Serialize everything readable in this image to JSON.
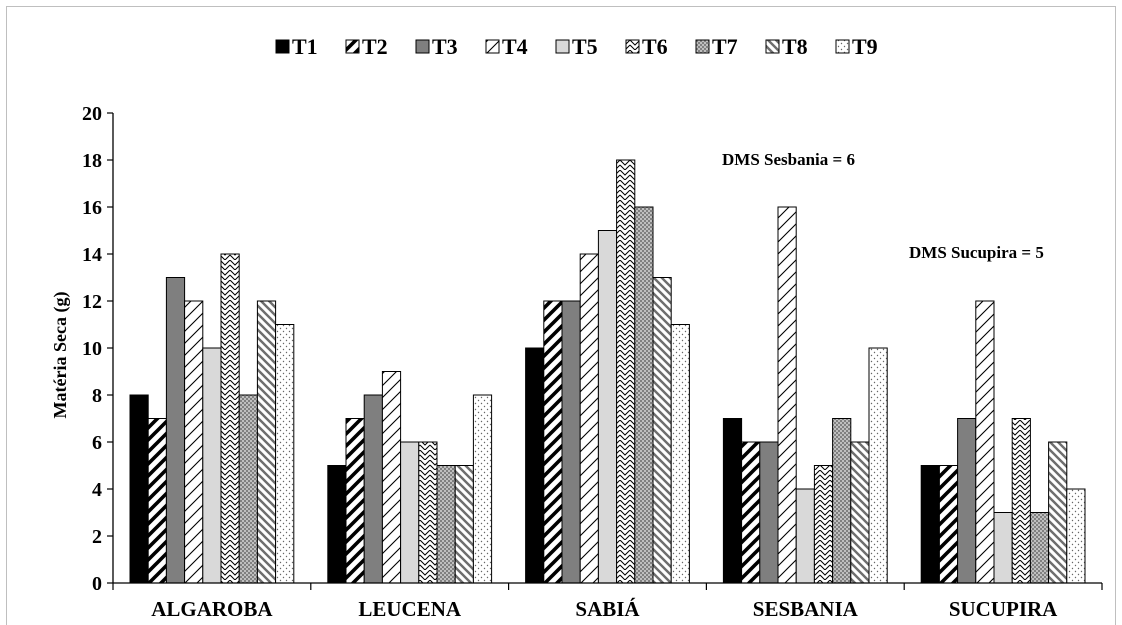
{
  "chart_data": {
    "type": "bar",
    "categories": [
      "ALGAROBA",
      "LEUCENA",
      "SABIÁ",
      "SESBANIA",
      "SUCUPIRA"
    ],
    "series": [
      {
        "name": "T1",
        "values": [
          8,
          5,
          10,
          7,
          5
        ]
      },
      {
        "name": "T2",
        "values": [
          7,
          7,
          12,
          6,
          5
        ]
      },
      {
        "name": "T3",
        "values": [
          13,
          8,
          12,
          6,
          7
        ]
      },
      {
        "name": "T4",
        "values": [
          12,
          9,
          14,
          16,
          12
        ]
      },
      {
        "name": "T5",
        "values": [
          10,
          6,
          15,
          4,
          3
        ]
      },
      {
        "name": "T6",
        "values": [
          14,
          6,
          18,
          5,
          7
        ]
      },
      {
        "name": "T7",
        "values": [
          8,
          5,
          16,
          7,
          3
        ]
      },
      {
        "name": "T8",
        "values": [
          12,
          5,
          13,
          6,
          6
        ]
      },
      {
        "name": "T9",
        "values": [
          11,
          8,
          11,
          10,
          4
        ]
      }
    ],
    "ylabel": "Matéria Seca (g)",
    "xlabel": "",
    "ylim": [
      0,
      20
    ],
    "y_ticks": [
      0,
      2,
      4,
      6,
      8,
      10,
      12,
      14,
      16,
      18,
      20
    ],
    "grid": false,
    "legend_position": "top",
    "annotations": [
      {
        "text": "DMS Sesbania = 6"
      },
      {
        "text": "DMS Sucupira = 5"
      }
    ]
  }
}
